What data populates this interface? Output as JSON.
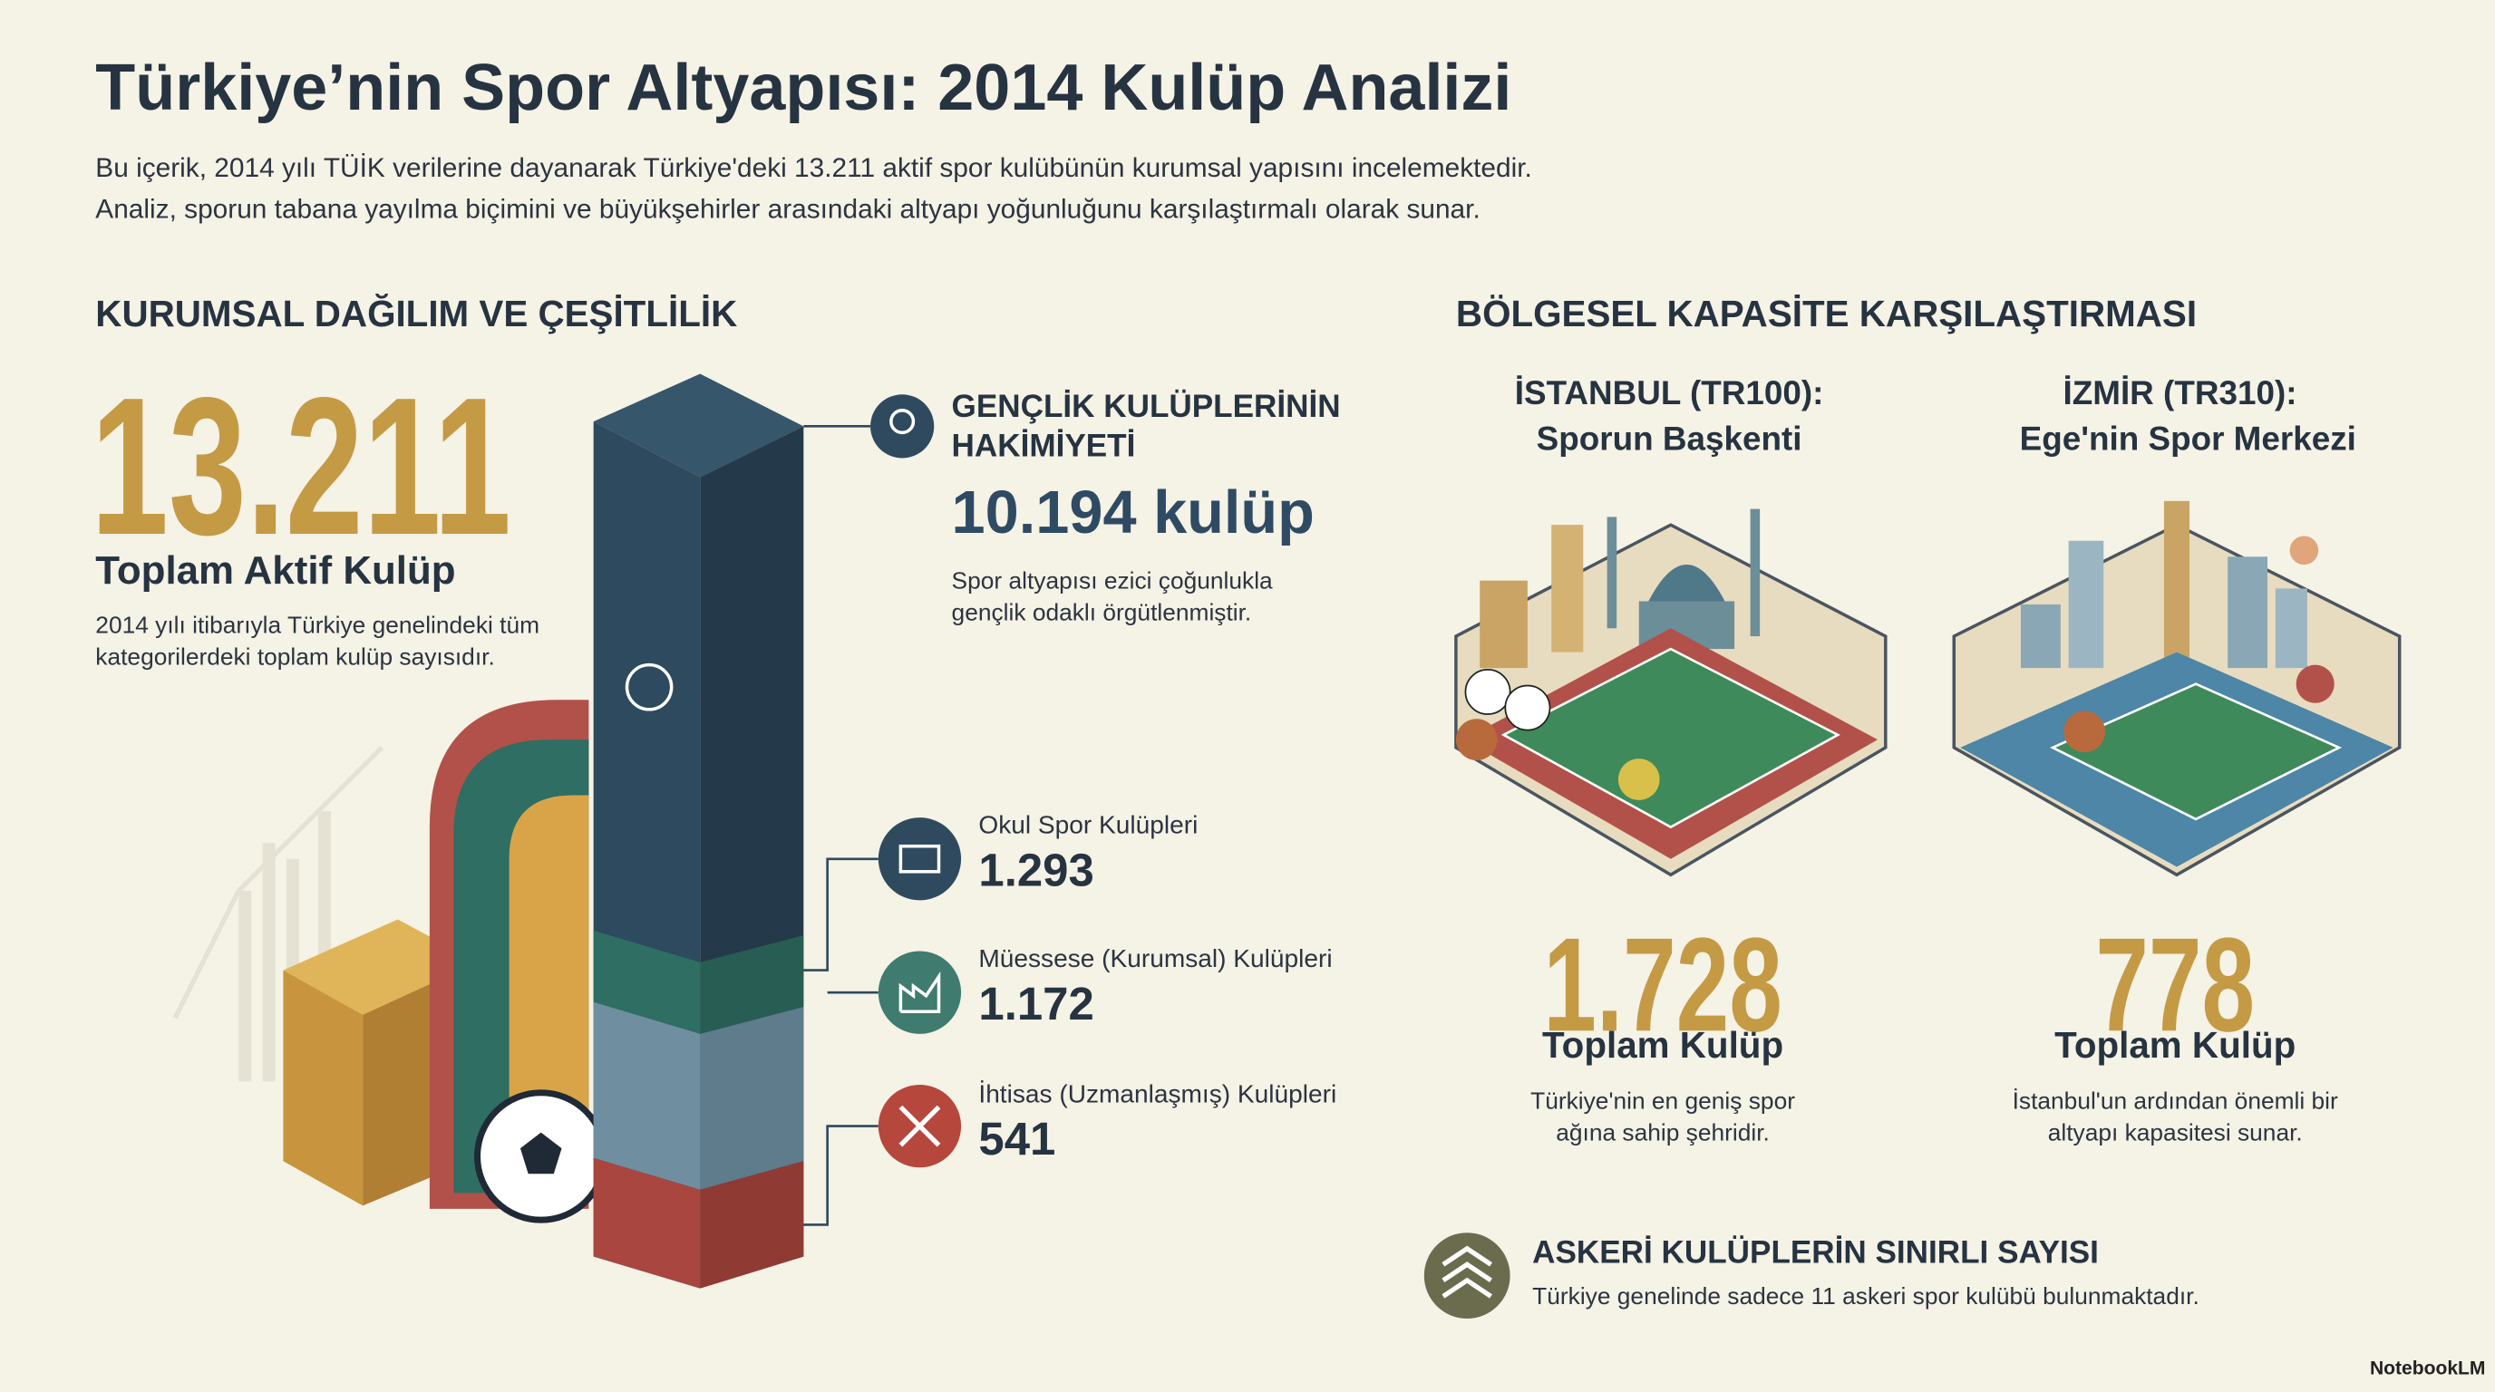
{
  "header": {
    "title": "Türkiye’nin Spor Altyapısı: 2014 Kulüp Analizi",
    "intro": [
      "Bu içerik, 2014 yılı TÜİK verilerine dayanarak Türkiye'deki 13.211 aktif spor kulübünün kurumsal yapısını incelemektedir.",
      "Analiz, sporun tabana yayılma biçimini ve büyükşehirler arasındaki altyapı yoğunluğunu karşılaştırmalı olarak sunar."
    ]
  },
  "left": {
    "heading": "KURUMSAL DAĞILIM VE ÇEŞİTLİLİK",
    "total": {
      "value": "13.211",
      "label": "Toplam Aktif Kulüp",
      "description": "2014 yılı itibarıyla Türkiye genelindeki tüm kategorilerdeki toplam kulüp sayısıdır."
    }
  },
  "youth": {
    "title": "GENÇLİK KULÜPLERİNİN HAKİMİYETİ",
    "value": "10.194 kulüp",
    "description": "Spor altyapısı ezici çoğunlukla gençlik odaklı örgütlenmiştir."
  },
  "clubs": [
    {
      "label": "Okul Spor Kulüpleri",
      "value": "1.293"
    },
    {
      "label": "Müessese (Kurumsal) Kulüpleri",
      "value": "1.172"
    },
    {
      "label": "İhtisas (Uzmanlaşmış) Kulüpleri",
      "value": "541"
    }
  ],
  "right": {
    "heading": "BÖLGESEL KAPASİTE KARŞILAŞTIRMASI",
    "cities": [
      {
        "name": "İSTANBUL (TR100):",
        "subtitle": "Sporun Başkenti",
        "value": "1.728",
        "label": "Toplam Kulüp",
        "description": "Türkiye'nin en geniş spor ağına sahip şehridir."
      },
      {
        "name": "İZMİR (TR310):",
        "subtitle": "Ege'nin Spor Merkezi",
        "value": "778",
        "label": "Toplam Kulüp",
        "description": "İstanbul'un ardından önemli bir altyapı kapasitesi sunar."
      }
    ]
  },
  "military": {
    "title": "ASKERİ KULÜPLERİN SINIRLI SAYISI",
    "text": "Türkiye genelinde sadece 11 askeri spor kulübü bulunmaktadır."
  },
  "footer": {
    "brand": "NotebookLM"
  }
}
